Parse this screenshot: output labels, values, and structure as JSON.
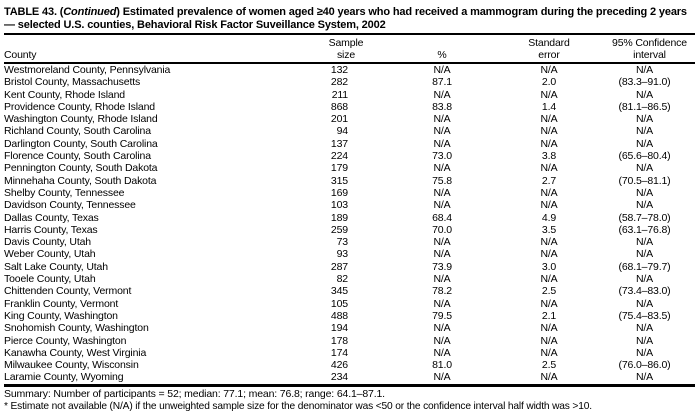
{
  "title": {
    "prefix": "TABLE 43. (",
    "continued_italic": "Continued",
    "rest": ") Estimated prevalence of women aged ≥40 years who had received a mammogram during the preceding 2 years — selected U.S. counties, Behavioral Risk Factor Suveillance System, 2002"
  },
  "table": {
    "columns": [
      "County",
      "Sample\nsize",
      "%",
      "Standard\nerror",
      "95% Confidence\ninterval"
    ],
    "col_names": [
      "county-cell",
      "sample-size-cell",
      "percent-cell",
      "standard-error-cell",
      "confidence-interval-cell"
    ],
    "rows": [
      [
        "Westmoreland County, Pennsylvania",
        "132",
        "N/A",
        "N/A",
        "N/A"
      ],
      [
        "Bristol County, Massachusetts",
        "282",
        "87.1",
        "2.0",
        "(83.3–91.0)"
      ],
      [
        "Kent County, Rhode Island",
        "211",
        "N/A",
        "N/A",
        "N/A"
      ],
      [
        "Providence County, Rhode Island",
        "868",
        "83.8",
        "1.4",
        "(81.1–86.5)"
      ],
      [
        "Washington County, Rhode Island",
        "201",
        "N/A",
        "N/A",
        "N/A"
      ],
      [
        "Richland County, South Carolina",
        "94",
        "N/A",
        "N/A",
        "N/A"
      ],
      [
        "Darlington County, South Carolina",
        "137",
        "N/A",
        "N/A",
        "N/A"
      ],
      [
        "Florence County, South Carolina",
        "224",
        "73.0",
        "3.8",
        "(65.6–80.4)"
      ],
      [
        "Pennington County, South Dakota",
        "179",
        "N/A",
        "N/A",
        "N/A"
      ],
      [
        "Minnehaha County, South Dakota",
        "315",
        "75.8",
        "2.7",
        "(70.5–81.1)"
      ],
      [
        "Shelby County, Tennessee",
        "169",
        "N/A",
        "N/A",
        "N/A"
      ],
      [
        "Davidson County, Tennessee",
        "103",
        "N/A",
        "N/A",
        "N/A"
      ],
      [
        "Dallas County, Texas",
        "189",
        "68.4",
        "4.9",
        "(58.7–78.0)"
      ],
      [
        "Harris County, Texas",
        "259",
        "70.0",
        "3.5",
        "(63.1–76.8)"
      ],
      [
        "Davis County, Utah",
        "73",
        "N/A",
        "N/A",
        "N/A"
      ],
      [
        "Weber County, Utah",
        "93",
        "N/A",
        "N/A",
        "N/A"
      ],
      [
        "Salt Lake County, Utah",
        "287",
        "73.9",
        "3.0",
        "(68.1–79.7)"
      ],
      [
        "Tooele County, Utah",
        "82",
        "N/A",
        "N/A",
        "N/A"
      ],
      [
        "Chittenden County, Vermont",
        "345",
        "78.2",
        "2.5",
        "(73.4–83.0)"
      ],
      [
        "Franklin County, Vermont",
        "105",
        "N/A",
        "N/A",
        "N/A"
      ],
      [
        "King County, Washington",
        "488",
        "79.5",
        "2.1",
        "(75.4–83.5)"
      ],
      [
        "Snohomish County, Washington",
        "194",
        "N/A",
        "N/A",
        "N/A"
      ],
      [
        "Pierce County, Washington",
        "178",
        "N/A",
        "N/A",
        "N/A"
      ],
      [
        "Kanawha County, West Virginia",
        "174",
        "N/A",
        "N/A",
        "N/A"
      ],
      [
        "Milwaukee County, Wisconsin",
        "426",
        "81.0",
        "2.5",
        "(76.0–86.0)"
      ],
      [
        "Laramie County, Wyoming",
        "234",
        "N/A",
        "N/A",
        "N/A"
      ]
    ]
  },
  "footer": {
    "summary": "Summary: Number of participants = 52; median: 77.1; mean: 76.8; range: 64.1–87.1.",
    "footnote": "* Estimate not available (N/A) if the unweighted sample size for the denominator was <50 or the confidence interval half width was >10."
  },
  "colors": {
    "text": "#000000",
    "background": "#ffffff",
    "rule": "#000000"
  }
}
